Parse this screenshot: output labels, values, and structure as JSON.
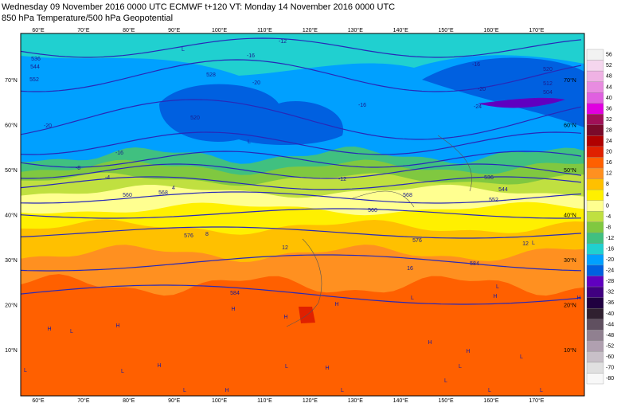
{
  "header": {
    "lines": [
      "Wednesday 09 November 2016 0000 UTC  ECMWF  t+120  VT: Monday 14 November 2016 0000 UTC",
      "850 hPa Temperature/500 hPa Geopotential"
    ]
  },
  "map": {
    "lon_labels": [
      "60°E",
      "70°E",
      "80°E",
      "90°E",
      "100°E",
      "110°E",
      "120°E",
      "130°E",
      "140°E",
      "150°E",
      "160°E",
      "170°E"
    ],
    "lat_labels": [
      "70°N",
      "60°N",
      "50°N",
      "40°N",
      "30°N",
      "20°N",
      "10°N"
    ],
    "contour_labels": [
      "536",
      "544",
      "552",
      "528",
      "520",
      "-12",
      "-16",
      "-20",
      "-16",
      "-20",
      "-16",
      "-12",
      "-8",
      "-4",
      "560",
      "568",
      "576",
      "4",
      "8",
      "584",
      "12",
      "16",
      "536",
      "544",
      "552",
      "560",
      "568",
      "576",
      "584",
      "12",
      "520",
      "512",
      "504",
      "-16",
      "-20",
      "-24"
    ],
    "centers": [
      "L",
      "L",
      "H",
      "L",
      "L",
      "H",
      "H",
      "H",
      "L",
      "H",
      "H",
      "H",
      "H",
      "L",
      "H",
      "H",
      "L",
      "L",
      "L",
      "L",
      "L",
      "L",
      "L",
      "L",
      "L",
      "L",
      "H",
      "H"
    ]
  },
  "colorbar": {
    "labels": [
      "56",
      "52",
      "48",
      "44",
      "40",
      "36",
      "32",
      "28",
      "24",
      "20",
      "16",
      "12",
      "8",
      "4",
      "0",
      "-4",
      "-8",
      "-12",
      "-16",
      "-20",
      "-24",
      "-28",
      "-32",
      "-36",
      "-40",
      "-44",
      "-48",
      "-52",
      "-60",
      "-70",
      "-80"
    ],
    "colors": [
      "#f2f2f2",
      "#f5d6ee",
      "#efb2e4",
      "#e88ce0",
      "#e060e0",
      "#e000e0",
      "#a01058",
      "#7a0a2a",
      "#b00000",
      "#e02000",
      "#ff6000",
      "#ff9020",
      "#ffc000",
      "#fff000",
      "#ffff90",
      "#c0e040",
      "#80c840",
      "#40c080",
      "#20d0d0",
      "#00a0ff",
      "#0060e0",
      "#6000c0",
      "#400080",
      "#200040",
      "#302030",
      "#605060",
      "#908090",
      "#b0a0b0",
      "#c8c0c8",
      "#e0e0e0",
      "#f8f8f8"
    ]
  }
}
